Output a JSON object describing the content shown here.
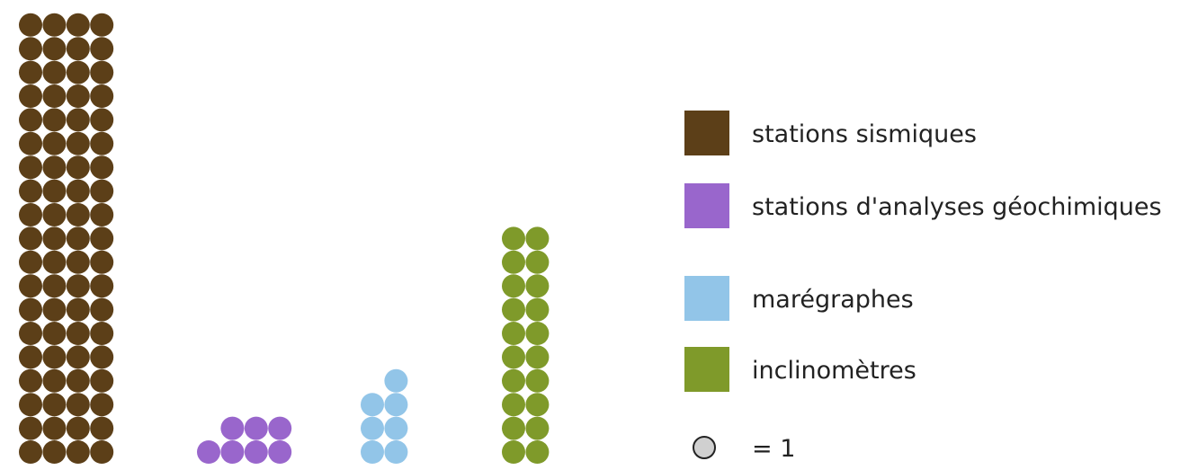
{
  "chart_data": {
    "type": "pictograph",
    "unit_value": 1,
    "columns_per_row_note": "dots stacked in columns, filled bottom-up",
    "series": [
      {
        "key": "sismiques",
        "value": 76,
        "dot_columns": 4,
        "color": "#5c3f18"
      },
      {
        "key": "geochimiques",
        "value": 7,
        "dot_columns": 4,
        "color": "#9966cc"
      },
      {
        "key": "maregraphes",
        "value": 7,
        "dot_columns": 2,
        "color": "#92c5e8"
      },
      {
        "key": "inclinometres",
        "value": 20,
        "dot_columns": 2,
        "color": "#7f9a2a"
      }
    ],
    "legend": [
      {
        "label": "stations sismiques",
        "color": "#5c3f18"
      },
      {
        "label": "stations d'analyses géochimiques",
        "color": "#9966cc"
      },
      {
        "label": "marégraphes",
        "color": "#92c5e8"
      },
      {
        "label": "inclinomètres",
        "color": "#7f9a2a"
      }
    ],
    "key_symbol": {
      "label": "= 1",
      "color": "#d0d0d0"
    }
  }
}
